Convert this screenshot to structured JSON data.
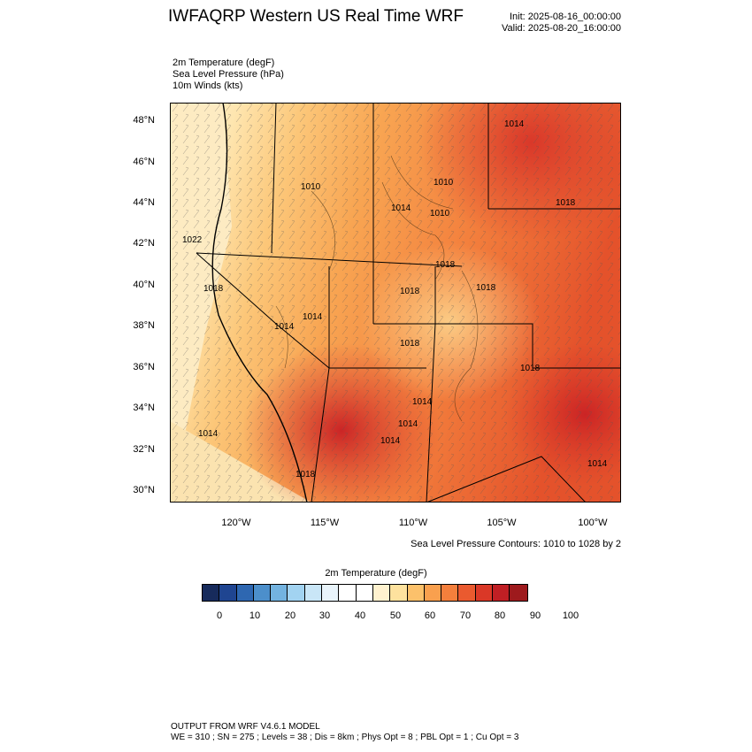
{
  "header": {
    "title": "IWFAQRP Western US Real Time WRF",
    "init": "Init: 2025-08-16_00:00:00",
    "valid": "Valid: 2025-08-20_16:00:00"
  },
  "fields": [
    "2m Temperature   (degF)",
    "Sea Level Pressure   (hPa)",
    "10m Winds   (kts)"
  ],
  "lat_labels": [
    "48°N",
    "46°N",
    "44°N",
    "42°N",
    "40°N",
    "38°N",
    "36°N",
    "34°N",
    "32°N",
    "30°N"
  ],
  "lon_labels": [
    "120°W",
    "115°W",
    "110°W",
    "105°W",
    "100°W"
  ],
  "pressure_labels": [
    "1014",
    "1010",
    "1010",
    "1018",
    "1010",
    "1014",
    "1018",
    "1022",
    "1018",
    "1018",
    "1018",
    "1014",
    "1014",
    "1018",
    "1018",
    "1014",
    "1014",
    "1014",
    "1014",
    "1018",
    "1014"
  ],
  "contour_note": "Sea Level Pressure Contours: 1010 to 1028 by 2",
  "colorbar": {
    "title": "2m Temperature  (degF)",
    "labels": [
      "0",
      "10",
      "20",
      "30",
      "40",
      "50",
      "60",
      "70",
      "80",
      "90",
      "100"
    ],
    "colors": [
      "#172b5c",
      "#1f4591",
      "#2e67b1",
      "#4c8fcb",
      "#73b3e0",
      "#a2d3f1",
      "#c9e6f7",
      "#e9f4fb",
      "#ffffff",
      "#ffffff",
      "#fff2cf",
      "#fee29e",
      "#fcc16b",
      "#f9a04e",
      "#f47f3c",
      "#ea5a2f",
      "#da3827",
      "#c01f24",
      "#9e1a1d"
    ]
  },
  "footer": {
    "line1": "OUTPUT FROM WRF V4.6.1 MODEL",
    "line2": "WE = 310 ; SN = 275 ; Levels = 38 ; Dis = 8km ; Phys Opt = 8 ; PBL Opt = 1 ; Cu Opt = 3"
  }
}
